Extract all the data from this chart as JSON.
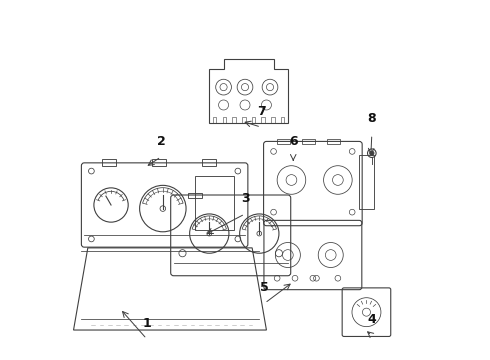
{
  "bg_color": "#ffffff",
  "line_color": "#404040",
  "line_width": 0.8,
  "label_fontsize": 9,
  "figsize": [
    4.9,
    3.6
  ],
  "dpi": 100,
  "callouts": [
    {
      "label": "1",
      "arrow_to": [
        0.15,
        0.14
      ],
      "text_at": [
        0.225,
        0.055
      ]
    },
    {
      "label": "2",
      "arrow_to": [
        0.22,
        0.535
      ],
      "text_at": [
        0.265,
        0.565
      ]
    },
    {
      "label": "3",
      "arrow_to": [
        0.385,
        0.345
      ],
      "text_at": [
        0.5,
        0.405
      ]
    },
    {
      "label": "4",
      "arrow_to": [
        0.835,
        0.082
      ],
      "text_at": [
        0.855,
        0.065
      ]
    },
    {
      "label": "5",
      "arrow_to": [
        0.635,
        0.215
      ],
      "text_at": [
        0.555,
        0.155
      ]
    },
    {
      "label": "6",
      "arrow_to": [
        0.635,
        0.545
      ],
      "text_at": [
        0.635,
        0.565
      ]
    },
    {
      "label": "7",
      "arrow_to": [
        0.49,
        0.665
      ],
      "text_at": [
        0.545,
        0.648
      ]
    },
    {
      "label": "8",
      "arrow_to": [
        0.852,
        0.562
      ],
      "text_at": [
        0.855,
        0.628
      ]
    }
  ]
}
